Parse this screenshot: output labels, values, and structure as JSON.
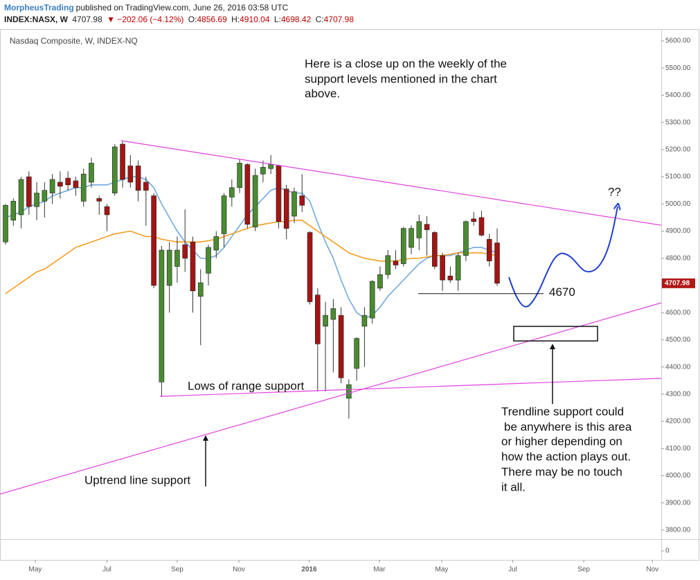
{
  "chart_data": {
    "type": "candlestick",
    "title": "Nasdaq Composite, W, INDEX-NQ",
    "header": {
      "author": "MorpheusTrading",
      "published": "published on TradingView.com, June 26, 2016 03:58 UTC",
      "symbol": "INDEX:NASX, W",
      "change": "▼ −202.06 (−4.12%)",
      "ohlc_labels": [
        "O:",
        "H:",
        "L:",
        "C:"
      ]
    },
    "x": [
      0,
      1,
      2,
      3,
      4,
      5,
      6,
      7,
      8,
      9,
      10,
      11,
      12,
      13,
      14,
      15,
      16,
      17,
      18,
      19,
      20,
      21,
      22,
      23,
      24,
      25,
      26,
      27,
      28,
      29,
      30,
      31,
      32,
      33,
      34,
      35,
      36,
      37,
      38,
      39,
      40,
      41,
      42,
      43,
      44,
      45,
      46,
      47,
      48,
      49,
      50,
      51,
      52,
      53,
      54,
      55,
      56,
      57,
      58,
      59,
      60,
      61,
      62,
      63
    ],
    "open": [
      4860,
      4940,
      4960,
      5100,
      4990,
      5010,
      5040,
      5080,
      5095,
      5085,
      5010,
      5080,
      5020,
      4990,
      5040,
      5220,
      5140,
      5140,
      5080,
      5030,
      4345,
      4700,
      4770,
      4850,
      4860,
      4660,
      4745,
      4830,
      4890,
      5025,
      5060,
      5145,
      4915,
      5110,
      5130,
      5140,
      5055,
      4955,
      5030,
      4895,
      4665,
      4550,
      4575,
      4590,
      4285,
      4395,
      4550,
      4580,
      4690,
      4740,
      4790,
      4780,
      4840,
      4875,
      4925,
      4895,
      4810,
      4735,
      4720,
      4810,
      4945,
      4950,
      4870,
      4856.69
    ],
    "high": [
      5000,
      5020,
      5100,
      5120,
      5080,
      5080,
      5110,
      5120,
      5120,
      5100,
      5130,
      5170,
      5030,
      5000,
      5220,
      5230,
      5180,
      5160,
      5100,
      5040,
      4845,
      4860,
      4880,
      4980,
      4880,
      4760,
      4850,
      4900,
      5040,
      5090,
      5165,
      5150,
      5130,
      5160,
      5180,
      5145,
      5070,
      5060,
      5110,
      4900,
      4690,
      4640,
      4650,
      4620,
      4355,
      4510,
      4620,
      4720,
      4770,
      4830,
      4830,
      4915,
      4920,
      4960,
      4955,
      4900,
      4820,
      4770,
      4820,
      4940,
      4970,
      4975,
      4890,
      4910.04
    ],
    "low": [
      4850,
      4920,
      4910,
      4960,
      4940,
      4950,
      5000,
      5020,
      5050,
      5030,
      4990,
      5060,
      4960,
      4900,
      5030,
      5060,
      5060,
      5010,
      4920,
      4690,
      4290,
      4600,
      4710,
      4750,
      4600,
      4480,
      4700,
      4800,
      4840,
      4990,
      5040,
      4910,
      4900,
      5080,
      5110,
      4910,
      4870,
      4930,
      4970,
      4630,
      4310,
      4310,
      4380,
      4340,
      4210,
      4350,
      4400,
      4560,
      4680,
      4725,
      4760,
      4770,
      4815,
      4830,
      4810,
      4760,
      4680,
      4710,
      4680,
      4790,
      4920,
      4880,
      4770,
      4698.42
    ],
    "close": [
      4995,
      5010,
      5090,
      4990,
      5040,
      5050,
      5090,
      5065,
      5070,
      5060,
      5110,
      5150,
      5010,
      4960,
      5210,
      5090,
      5080,
      5050,
      5050,
      4700,
      4830,
      4830,
      4830,
      4800,
      4680,
      4710,
      4840,
      4880,
      5030,
      5060,
      5150,
      4925,
      5105,
      5135,
      5145,
      4935,
      4910,
      5045,
      4995,
      4640,
      4485,
      4590,
      4615,
      4360,
      4335,
      4505,
      4590,
      4715,
      4740,
      4810,
      4775,
      4910,
      4910,
      4935,
      4905,
      4770,
      4720,
      4720,
      4810,
      4935,
      4935,
      4885,
      4790,
      4707.98
    ],
    "up_color": "#4a8b31",
    "down_color": "#a31515",
    "series": [
      {
        "color": "#6fa8dc",
        "values": [
          4950,
          4960,
          4970,
          4990,
          5000,
          5010,
          5030,
          5040,
          5050,
          5060,
          5060,
          5070,
          5070,
          5070,
          5080,
          5090,
          5100,
          5100,
          5090,
          5060,
          5000,
          4950,
          4900,
          4860,
          4830,
          4800,
          4800,
          4810,
          4840,
          4880,
          4920,
          4960,
          4990,
          5020,
          5050,
          5060,
          5050,
          5040,
          5040,
          5010,
          4930,
          4860,
          4800,
          4720,
          4650,
          4600,
          4580,
          4590,
          4620,
          4660,
          4690,
          4720,
          4750,
          4780,
          4800,
          4810,
          4810,
          4810,
          4820,
          4830,
          4840,
          4840,
          4830,
          4820
        ]
      },
      {
        "color": "#f39c1f",
        "values": [
          4670,
          4690,
          4710,
          4730,
          4750,
          4760,
          4780,
          4800,
          4820,
          4840,
          4850,
          4860,
          4870,
          4880,
          4890,
          4895,
          4900,
          4890,
          4880,
          4880,
          4870,
          4865,
          4860,
          4860,
          4860,
          4860,
          4865,
          4870,
          4880,
          4890,
          4900,
          4910,
          4920,
          4925,
          4930,
          4935,
          4935,
          4940,
          4940,
          4920,
          4900,
          4880,
          4860,
          4840,
          4820,
          4810,
          4800,
          4795,
          4790,
          4790,
          4790,
          4795,
          4800,
          4800,
          4805,
          4810,
          4810,
          4815,
          4820,
          4820,
          4820,
          4820,
          4815,
          4810
        ]
      }
    ],
    "xlim": [
      -0.71,
      84.03
    ],
    "xticks": [
      {
        "value": 3.8,
        "label": "May"
      },
      {
        "value": 13.0,
        "label": "Jul"
      },
      {
        "value": 22.0,
        "label": "Sep"
      },
      {
        "value": 29.9,
        "label": "Nov"
      },
      {
        "value": 38.9,
        "label": "2016"
      },
      {
        "value": 47.9,
        "label": "Mar"
      },
      {
        "value": 55.9,
        "label": "May"
      },
      {
        "value": 65.0,
        "label": "Jul"
      },
      {
        "value": 74.1,
        "label": "Sep"
      },
      {
        "value": 82.9,
        "label": "Nov"
      }
    ],
    "ylim": [
      3766.7,
      5643.3
    ],
    "yticks": [
      {
        "value": 3800,
        "label": "3800.00"
      },
      {
        "value": 3900,
        "label": "3900.00"
      },
      {
        "value": 4000,
        "label": "4000.00"
      },
      {
        "value": 4100,
        "label": "4100.00"
      },
      {
        "value": 4200,
        "label": "4200.00"
      },
      {
        "value": 4300,
        "label": "4300.00"
      },
      {
        "value": 4400,
        "label": "4400.00"
      },
      {
        "value": 4500,
        "label": "4500.00"
      },
      {
        "value": 4600,
        "label": "4600.00"
      },
      {
        "value": 4700,
        "label": "4700.00"
      },
      {
        "value": 4800,
        "label": "4800.00"
      },
      {
        "value": 4900,
        "label": "4900.00"
      },
      {
        "value": 5000,
        "label": "5000.00"
      },
      {
        "value": 5100,
        "label": "5100.00"
      },
      {
        "value": 5200,
        "label": "5200.00"
      },
      {
        "value": 5300,
        "label": "5300.00"
      },
      {
        "value": 5400,
        "label": "5400.00"
      },
      {
        "value": 5500,
        "label": "5500.00"
      },
      {
        "value": 5600,
        "label": "5600.00"
      }
    ],
    "volume_yticks": [
      0
    ],
    "grid": false,
    "support_level": 4670,
    "annotations": {
      "note": [
        "Here is a close up on the weekly of the",
        "support levels mentioned in the chart",
        "above."
      ],
      "projection": "??",
      "range_support": "Lows of range support",
      "trendline_note": [
        "Trendline support could",
        "be anywhere is this area",
        "or higher depending on",
        "how the action plays out.",
        "There may be no touch",
        "it all."
      ],
      "uptrend": "Uptrend line support"
    }
  }
}
